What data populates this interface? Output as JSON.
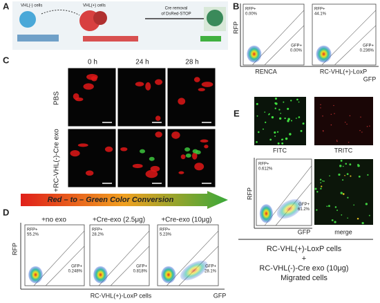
{
  "panel_a": {
    "label": "A",
    "left_cells": "VHL(-) cells",
    "right_cells": "VHL(+) cells",
    "arrow_text": [
      "Cre removal",
      "of DsRed-STOP"
    ]
  },
  "panel_b": {
    "label": "B",
    "y_axis": "RFP",
    "x_axis": "GFP",
    "plots": [
      {
        "name": "RENCA",
        "rfp_gate": "RFP+",
        "rfp_value": "0.00%",
        "gfp_gate": "GFP+",
        "gfp_value": "0.00%"
      },
      {
        "name": "RC-VHL(+)-LoxP",
        "rfp_gate": "RFP+",
        "rfp_value": "44.1%",
        "gfp_gate": "GFP+",
        "gfp_value": "0.236%"
      }
    ]
  },
  "panel_c": {
    "label": "C",
    "columns": [
      "0 h",
      "24 h",
      "28 h"
    ],
    "rows": [
      "PBS",
      "+RC-VHL(-)-Cre exo"
    ],
    "banner": "Red – to – Green Color Conversion"
  },
  "panel_d": {
    "label": "D",
    "y_axis": "RFP",
    "x_axis": "GFP",
    "caption": "RC-VHL(+)-LoxP cells",
    "plots": [
      {
        "name": "+no exo",
        "rfp_gate": "RFP+",
        "rfp_value": "55.2%",
        "gfp_gate": "GFP+",
        "gfp_value": "0.248%"
      },
      {
        "name": "+Cre-exo (2.5μg)",
        "rfp_gate": "RFP+",
        "rfp_value": "28.2%",
        "gfp_gate": "GFP+",
        "gfp_value": "0.818%"
      },
      {
        "name": "+Cre-exo (10μg)",
        "rfp_gate": "RFP+",
        "rfp_value": "5.23%",
        "gfp_gate": "GFP+",
        "gfp_value": "28.1%"
      }
    ]
  },
  "panel_e": {
    "label": "E",
    "images": [
      "FITC",
      "TRITC",
      "merge"
    ],
    "y_axis": "RFP",
    "x_axis": "GFP",
    "plot": {
      "rfp_gate": "RFP+",
      "rfp_value": "0.612%",
      "gfp_gate": "GFP+",
      "gfp_value": "61.2%"
    },
    "caption": [
      "RC-VHL(+)-LoxP cells",
      "+",
      "RC-VHL(-)-Cre exo (10μg)",
      "Migrated cells"
    ]
  }
}
